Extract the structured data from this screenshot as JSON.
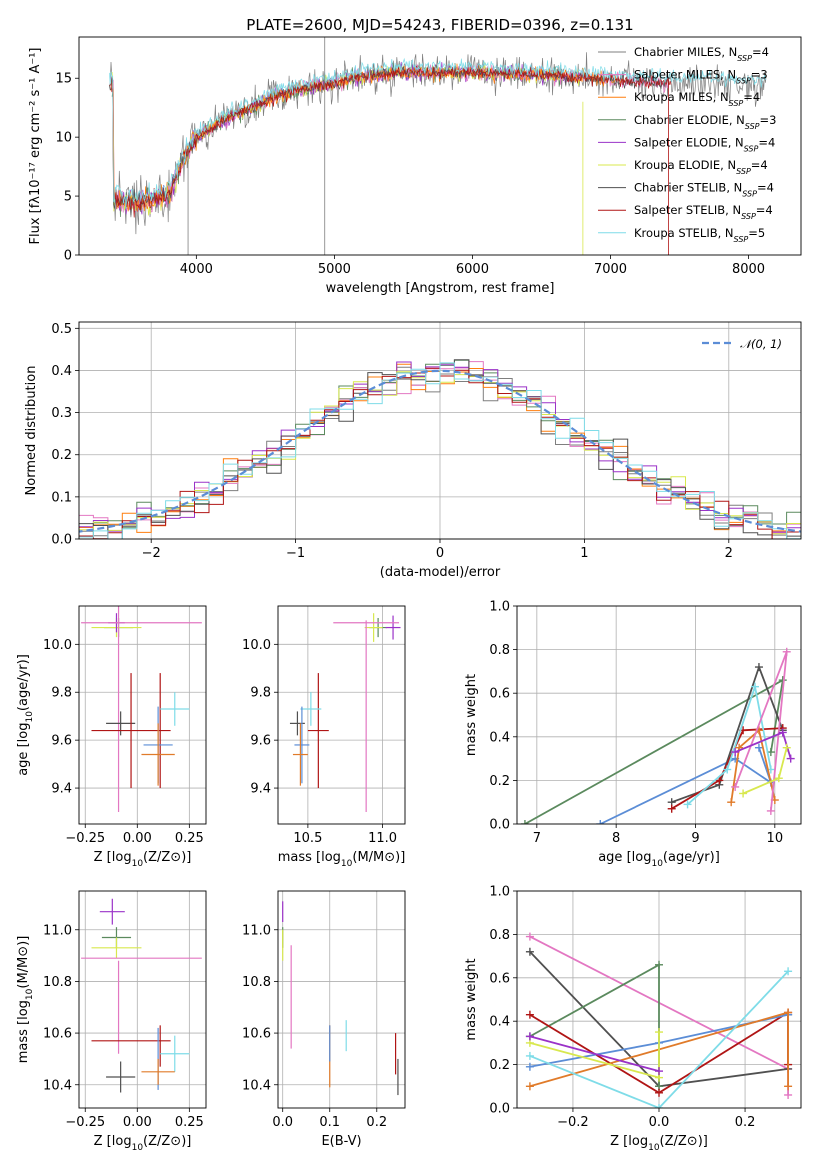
{
  "title": "PLATE=2600, MJD=54243, FIBERID=0396, z=0.131",
  "colors": {
    "Chabrier MILES": "#7f7f7f",
    "Salpeter MILES": "#e377c2",
    "Kroupa MILES": "#ff7f0e",
    "Chabrier ELODIE": "#5b8a5e",
    "Salpeter ELODIE": "#9a32c8",
    "Kroupa ELODIE": "#d8e84e",
    "Chabrier STELIB": "#505050",
    "Salpeter STELIB": "#b01515",
    "Kroupa STELIB": "#7fdce8",
    "blue": "#5b8dd6",
    "orange": "#e07b2a",
    "pink": "#e377c2",
    "normal": "#5b8dd6"
  },
  "chart_data": [
    {
      "id": "spectrum",
      "type": "line",
      "xlabel": "wavelength [Angstrom, rest frame]",
      "ylabel": "Flux [fλ10⁻¹⁷ erg cm⁻² s⁻¹ A⁻¹]",
      "xlim": [
        3150,
        8380
      ],
      "ylim": [
        0,
        18.5
      ],
      "xticks": [
        "4000",
        "5000",
        "6000",
        "7000",
        "8000"
      ],
      "yticks": [
        "0",
        "5",
        "10",
        "15"
      ],
      "continuum": {
        "x": [
          3400,
          3600,
          3800,
          3900,
          4000,
          4200,
          4400,
          4600,
          4800,
          5000,
          5200,
          5500,
          6000,
          6500,
          7000,
          7500,
          8000
        ],
        "y": [
          4.5,
          4.5,
          5.2,
          8.0,
          10.0,
          11.5,
          12.5,
          13.6,
          14.2,
          14.6,
          15.2,
          15.5,
          15.5,
          15.3,
          14.9,
          14.6,
          14.4
        ]
      },
      "legend": [
        {
          "label": "Chabrier MILES, N",
          "sub": "SSP",
          "n": "=4"
        },
        {
          "label": "Salpeter MILES, N",
          "sub": "SSP",
          "n": "=3"
        },
        {
          "label": "Kroupa MILES, N",
          "sub": "SSP",
          "n": "=4"
        },
        {
          "label": "Chabrier ELODIE, N",
          "sub": "SSP",
          "n": "=3"
        },
        {
          "label": "Salpeter ELODIE, N",
          "sub": "SSP",
          "n": "=4"
        },
        {
          "label": "Kroupa ELODIE, N",
          "sub": "SSP",
          "n": "=4"
        },
        {
          "label": "Chabrier STELIB, N",
          "sub": "SSP",
          "n": "=4"
        },
        {
          "label": "Salpeter STELIB, N",
          "sub": "SSP",
          "n": "=4"
        },
        {
          "label": "Kroupa STELIB, N",
          "sub": "SSP",
          "n": "=5"
        }
      ],
      "legend_placement": "right"
    },
    {
      "id": "residuals",
      "type": "histogram",
      "xlabel": "(data-model)/error",
      "ylabel": "Normed distribution",
      "xlim": [
        -2.5,
        2.5
      ],
      "ylim": [
        0,
        0.515
      ],
      "xticks": [
        "−2",
        "−1",
        "0",
        "1",
        "2"
      ],
      "yticks": [
        "0.0",
        "0.1",
        "0.2",
        "0.3",
        "0.4",
        "0.5"
      ],
      "grid": true,
      "bin_width": 0.1,
      "legend": "𝒩(0, 1)",
      "legend_placement": "top-right"
    },
    {
      "id": "age_vs_Z",
      "type": "scatter",
      "xlabel": "Z [log10(Z/Z⊙)]",
      "ylabel": "age  [log10(age/yr)]",
      "xlim": [
        -0.28,
        0.33
      ],
      "ylim": [
        9.25,
        10.16
      ],
      "xticks": [
        "−0.25",
        "0.00",
        "0.25"
      ],
      "yticks": [
        "9.4",
        "9.6",
        "9.8",
        "10.0"
      ],
      "grid": true,
      "points": [
        {
          "x": -0.09,
          "y": 10.07,
          "xe": 0.07,
          "ye": 0.04,
          "c": "#5b8a5e"
        },
        {
          "x": -0.1,
          "y": 10.07,
          "xe": 0.12,
          "ye": 0.04,
          "c": "#d8e84e"
        },
        {
          "x": -0.1,
          "y": 10.09,
          "xe": 0.04,
          "ye": 0.04,
          "c": "#9a32c8"
        },
        {
          "x": 0.02,
          "y": 10.09,
          "xe": 0.29,
          "ye": 0.0,
          "c": "#e377c2"
        },
        {
          "x": -0.09,
          "y": 10.0,
          "xe": 0.0,
          "ye": 0.7,
          "c": "#e377c2"
        },
        {
          "x": -0.08,
          "y": 9.67,
          "xe": 0.07,
          "ye": 0.05,
          "c": "#505050"
        },
        {
          "x": -0.03,
          "y": 9.64,
          "xe": 0.19,
          "ye": 0.24,
          "c": "#b01515"
        },
        {
          "x": 0.11,
          "y": 9.64,
          "xe": 0.0,
          "ye": 0.24,
          "c": "#b01515"
        },
        {
          "x": 0.18,
          "y": 9.73,
          "xe": 0.07,
          "ye": 0.07,
          "c": "#7fdce8"
        },
        {
          "x": 0.1,
          "y": 9.58,
          "xe": 0.07,
          "ye": 0.16,
          "c": "#5b8dd6"
        },
        {
          "x": 0.1,
          "y": 9.54,
          "xe": 0.08,
          "ye": 0.13,
          "c": "#e07b2a"
        }
      ]
    },
    {
      "id": "age_vs_mass",
      "type": "scatter",
      "xlabel": "mass [log10(M/M⊙)]",
      "ylabel": "",
      "xlim": [
        10.3,
        11.15
      ],
      "ylim": [
        9.25,
        10.16
      ],
      "xticks": [
        "10.5",
        "11.0"
      ],
      "yticks": [
        "9.4",
        "9.6",
        "9.8",
        "10.0"
      ],
      "grid": true,
      "points": [
        {
          "x": 10.97,
          "y": 10.07,
          "xe": 0.06,
          "ye": 0.04,
          "c": "#5b8a5e"
        },
        {
          "x": 10.94,
          "y": 10.07,
          "xe": 0.06,
          "ye": 0.06,
          "c": "#d8e84e"
        },
        {
          "x": 11.07,
          "y": 10.07,
          "xe": 0.05,
          "ye": 0.05,
          "c": "#9a32c8"
        },
        {
          "x": 10.89,
          "y": 10.09,
          "xe": 0.22,
          "ye": 0.0,
          "c": "#e377c2"
        },
        {
          "x": 10.89,
          "y": 9.7,
          "xe": 0.0,
          "ye": 0.4,
          "c": "#e377c2"
        },
        {
          "x": 10.43,
          "y": 9.67,
          "xe": 0.05,
          "ye": 0.05,
          "c": "#505050"
        },
        {
          "x": 10.57,
          "y": 9.64,
          "xe": 0.07,
          "ye": 0.24,
          "c": "#b01515"
        },
        {
          "x": 10.52,
          "y": 9.73,
          "xe": 0.07,
          "ye": 0.07,
          "c": "#7fdce8"
        },
        {
          "x": 10.46,
          "y": 9.58,
          "xe": 0.05,
          "ye": 0.16,
          "c": "#5b8dd6"
        },
        {
          "x": 10.45,
          "y": 9.54,
          "xe": 0.05,
          "ye": 0.13,
          "c": "#e07b2a"
        }
      ]
    },
    {
      "id": "weight_vs_age",
      "type": "line",
      "xlabel": "age  [log10(age/yr)]",
      "ylabel": "mass weight",
      "xlim": [
        6.75,
        10.33
      ],
      "ylim": [
        0,
        1.0
      ],
      "xticks": [
        "7",
        "8",
        "9",
        "10"
      ],
      "yticks": [
        "0.0",
        "0.2",
        "0.4",
        "0.6",
        "0.8",
        "1.0"
      ],
      "grid": true,
      "series": [
        {
          "c": "#5b8a5e",
          "x": [
            6.85,
            10.1,
            9.95
          ],
          "y": [
            0.0,
            0.66,
            0.33
          ]
        },
        {
          "c": "#5b8dd6",
          "x": [
            7.8,
            9.5,
            9.95,
            9.8
          ],
          "y": [
            0.0,
            0.3,
            0.19,
            0.35
          ]
        },
        {
          "c": "#505050",
          "x": [
            8.7,
            9.3,
            9.8,
            10.1
          ],
          "y": [
            0.1,
            0.18,
            0.72,
            0.43
          ]
        },
        {
          "c": "#b01515",
          "x": [
            8.7,
            9.3,
            9.6,
            10.1
          ],
          "y": [
            0.07,
            0.2,
            0.43,
            0.44
          ]
        },
        {
          "c": "#7fdce8",
          "x": [
            8.9,
            9.4,
            9.75,
            9.95
          ],
          "y": [
            0.09,
            0.25,
            0.63,
            0.25
          ]
        },
        {
          "c": "#e07b2a",
          "x": [
            9.45,
            9.55,
            9.8,
            10.0
          ],
          "y": [
            0.1,
            0.35,
            0.43,
            0.11
          ]
        },
        {
          "c": "#e377c2",
          "x": [
            9.5,
            10.15,
            9.95
          ],
          "y": [
            0.17,
            0.79,
            0.06
          ]
        },
        {
          "c": "#9a32c8",
          "x": [
            9.5,
            10.1,
            10.2
          ],
          "y": [
            0.33,
            0.42,
            0.3
          ]
        },
        {
          "c": "#d8e84e",
          "x": [
            9.6,
            10.05,
            10.15
          ],
          "y": [
            0.14,
            0.21,
            0.35
          ]
        }
      ]
    },
    {
      "id": "mass_vs_Z",
      "type": "scatter",
      "xlabel": "Z [log10(Z/Z⊙)]",
      "ylabel": "mass [log10(M/M⊙)]",
      "xlim": [
        -0.28,
        0.33
      ],
      "ylim": [
        10.31,
        11.15
      ],
      "xticks": [
        "−0.25",
        "0.00",
        "0.25"
      ],
      "yticks": [
        "10.4",
        "10.6",
        "10.8",
        "11.0"
      ],
      "grid": true,
      "points": [
        {
          "x": -0.12,
          "y": 11.07,
          "xe": 0.06,
          "ye": 0.05,
          "c": "#9a32c8"
        },
        {
          "x": -0.1,
          "y": 10.97,
          "xe": 0.07,
          "ye": 0.04,
          "c": "#5b8a5e"
        },
        {
          "x": -0.1,
          "y": 10.93,
          "xe": 0.12,
          "ye": 0.04,
          "c": "#d8e84e"
        },
        {
          "x": 0.02,
          "y": 10.89,
          "xe": 0.29,
          "ye": 0.0,
          "c": "#e377c2"
        },
        {
          "x": -0.09,
          "y": 10.7,
          "xe": 0.0,
          "ye": 0.18,
          "c": "#e377c2"
        },
        {
          "x": -0.03,
          "y": 10.57,
          "xe": 0.19,
          "ye": 0.0,
          "c": "#b01515"
        },
        {
          "x": 0.11,
          "y": 10.55,
          "xe": 0.0,
          "ye": 0.08,
          "c": "#b01515"
        },
        {
          "x": 0.18,
          "y": 10.52,
          "xe": 0.07,
          "ye": 0.07,
          "c": "#7fdce8"
        },
        {
          "x": 0.1,
          "y": 10.5,
          "xe": 0.0,
          "ye": 0.12,
          "c": "#5b8dd6"
        },
        {
          "x": 0.1,
          "y": 10.45,
          "xe": 0.08,
          "ye": 0.05,
          "c": "#e07b2a"
        },
        {
          "x": -0.08,
          "y": 10.43,
          "xe": 0.07,
          "ye": 0.06,
          "c": "#505050"
        }
      ]
    },
    {
      "id": "mass_vs_EBV",
      "type": "scatter",
      "xlabel": "E(B-V)",
      "ylabel": "",
      "xlim": [
        -0.01,
        0.26
      ],
      "ylim": [
        10.31,
        11.15
      ],
      "xticks": [
        "0.0",
        "0.1",
        "0.2"
      ],
      "yticks": [
        "10.4",
        "10.6",
        "10.8",
        "11.0"
      ],
      "grid": true,
      "points": [
        {
          "x": 0.0,
          "y": 11.07,
          "xe": 0.0,
          "ye": 0.04,
          "c": "#9a32c8"
        },
        {
          "x": 0.0,
          "y": 10.97,
          "xe": 0.0,
          "ye": 0.04,
          "c": "#5b8a5e"
        },
        {
          "x": 0.0,
          "y": 10.94,
          "xe": 0.0,
          "ye": 0.06,
          "c": "#d8e84e"
        },
        {
          "x": 0.018,
          "y": 10.74,
          "xe": 0.0,
          "ye": 0.2,
          "c": "#e377c2"
        },
        {
          "x": 0.1,
          "y": 10.51,
          "xe": 0.0,
          "ye": 0.12,
          "c": "#e07b2a"
        },
        {
          "x": 0.1,
          "y": 10.56,
          "xe": 0.0,
          "ye": 0.07,
          "c": "#5b8dd6"
        },
        {
          "x": 0.135,
          "y": 10.59,
          "xe": 0.0,
          "ye": 0.06,
          "c": "#7fdce8"
        },
        {
          "x": 0.24,
          "y": 10.52,
          "xe": 0.0,
          "ye": 0.08,
          "c": "#b01515"
        },
        {
          "x": 0.245,
          "y": 10.43,
          "xe": 0.0,
          "ye": 0.07,
          "c": "#505050"
        }
      ]
    },
    {
      "id": "weight_vs_Z",
      "type": "line",
      "xlabel": "Z [log10(Z/Z⊙)]",
      "ylabel": "mass weight",
      "xlim": [
        -0.33,
        0.33
      ],
      "ylim": [
        0,
        1.0
      ],
      "xticks": [
        "−0.2",
        "0.0",
        "0.2"
      ],
      "yticks": [
        "0.0",
        "0.2",
        "0.4",
        "0.6",
        "0.8",
        "1.0"
      ],
      "grid": true,
      "series": [
        {
          "c": "#e377c2",
          "x": [
            -0.3,
            0.3,
            0.3
          ],
          "y": [
            0.79,
            0.18,
            0.06
          ]
        },
        {
          "c": "#505050",
          "x": [
            -0.3,
            0.0,
            0.3,
            0.3
          ],
          "y": [
            0.72,
            0.1,
            0.18,
            0.43
          ]
        },
        {
          "c": "#5b8a5e",
          "x": [
            -0.3,
            0.0,
            0.0
          ],
          "y": [
            0.33,
            0.66,
            0.1
          ]
        },
        {
          "c": "#b01515",
          "x": [
            -0.3,
            0.0,
            0.3,
            0.3
          ],
          "y": [
            0.43,
            0.07,
            0.44,
            0.2
          ]
        },
        {
          "c": "#5b8dd6",
          "x": [
            -0.3,
            0.0,
            0.3
          ],
          "y": [
            0.19,
            0.3,
            0.43
          ]
        },
        {
          "c": "#e07b2a",
          "x": [
            -0.3,
            0.3,
            0.3
          ],
          "y": [
            0.1,
            0.44,
            0.1
          ]
        },
        {
          "c": "#7fdce8",
          "x": [
            -0.3,
            0.0,
            0.3
          ],
          "y": [
            0.24,
            0.0,
            0.63
          ]
        },
        {
          "c": "#d8e84e",
          "x": [
            -0.3,
            0.0,
            0.0
          ],
          "y": [
            0.3,
            0.14,
            0.35
          ]
        },
        {
          "c": "#9a32c8",
          "x": [
            -0.3,
            0.0
          ],
          "y": [
            0.33,
            0.17
          ]
        }
      ]
    }
  ]
}
